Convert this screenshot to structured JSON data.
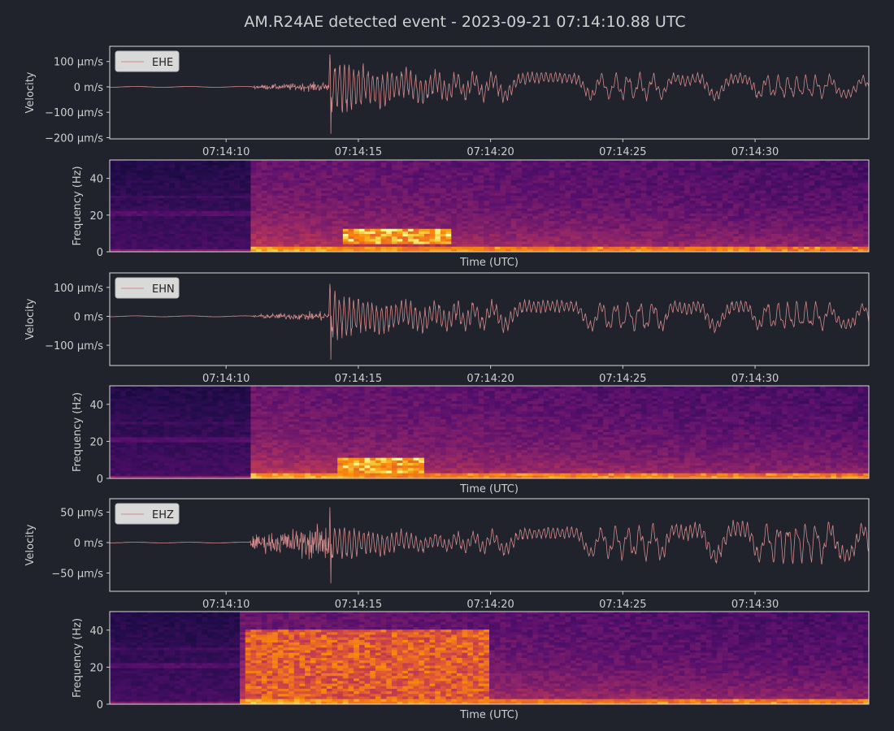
{
  "chart_data": {
    "title": "AM.R24AE detected event - 2023-09-21 07:14:10.88 UTC",
    "type": "line",
    "time_axis": {
      "label": "Time (UTC)",
      "range_seconds_after_07_14_00": [
        5.6,
        34.3
      ],
      "tick_labels": [
        "07:14:10",
        "07:14:15",
        "07:14:20",
        "07:14:25",
        "07:14:30"
      ]
    },
    "colors": {
      "background": "#20232c",
      "trace": "#d08a8a",
      "frame": "#d8d8d8",
      "text": "#cfcfcf"
    },
    "panels": [
      {
        "kind": "waveform",
        "channel": "EHE",
        "ylabel": "Velocity",
        "ylim_um_s": [
          -205,
          160
        ],
        "y_ticks": [
          {
            "value": 100,
            "label": "100 μm/s"
          },
          {
            "value": 0,
            "label": "0 m/s"
          },
          {
            "value": -100,
            "label": "−100 μm/s"
          },
          {
            "value": -200,
            "label": "−200 μm/s"
          }
        ],
        "p_arrival": 11.0,
        "s_arrival": 13.9,
        "amplitudes": {
          "noise": 1.5,
          "p_phase": 25,
          "s_peak": 130,
          "coda_start": 70,
          "late": 35,
          "min_spike": -185,
          "max_spike": 128
        }
      },
      {
        "kind": "spectrogram",
        "channel": "EHE",
        "ylabel": "Frequency (Hz)",
        "xlabel": "Time (UTC)",
        "ylim_hz": [
          0,
          50
        ],
        "y_ticks": [
          {
            "value": 0,
            "label": "0"
          },
          {
            "value": 20,
            "label": "20"
          },
          {
            "value": 40,
            "label": "40"
          }
        ],
        "onset": 10.9,
        "hotspots": [
          {
            "t0": 14.5,
            "t1": 18.5,
            "f0": 4,
            "f1": 12,
            "intensity": 0.95
          },
          {
            "t0": 19,
            "t1": 34.3,
            "f0": 0,
            "f1": 3,
            "intensity": 0.85
          }
        ]
      },
      {
        "kind": "waveform",
        "channel": "EHN",
        "ylabel": "Velocity",
        "ylim_um_s": [
          -170,
          150
        ],
        "y_ticks": [
          {
            "value": 100,
            "label": "100 μm/s"
          },
          {
            "value": 0,
            "label": "0 m/s"
          },
          {
            "value": -100,
            "label": "−100 μm/s"
          }
        ],
        "p_arrival": 11.0,
        "s_arrival": 13.9,
        "amplitudes": {
          "noise": 1.5,
          "p_phase": 22,
          "s_peak": 100,
          "coda_start": 60,
          "late": 40,
          "min_spike": -150,
          "max_spike": 112
        }
      },
      {
        "kind": "spectrogram",
        "channel": "EHN",
        "ylabel": "Frequency (Hz)",
        "xlabel": "Time (UTC)",
        "ylim_hz": [
          0,
          50
        ],
        "y_ticks": [
          {
            "value": 0,
            "label": "0"
          },
          {
            "value": 20,
            "label": "20"
          },
          {
            "value": 40,
            "label": "40"
          }
        ],
        "onset": 10.9,
        "hotspots": [
          {
            "t0": 14.3,
            "t1": 17.5,
            "f0": 3,
            "f1": 11,
            "intensity": 0.95
          },
          {
            "t0": 19,
            "t1": 34.3,
            "f0": 0,
            "f1": 3,
            "intensity": 0.85
          }
        ]
      },
      {
        "kind": "waveform",
        "channel": "EHZ",
        "ylabel": "Velocity",
        "ylim_um_s": [
          -80,
          72
        ],
        "y_ticks": [
          {
            "value": 50,
            "label": "50 μm/s"
          },
          {
            "value": 0,
            "label": "0 m/s"
          },
          {
            "value": -50,
            "label": "−50 μm/s"
          }
        ],
        "p_arrival": 10.9,
        "s_arrival": 13.9,
        "amplitudes": {
          "noise": 0.6,
          "p_phase": 40,
          "s_peak": 35,
          "coda_start": 12,
          "late": 35,
          "min_spike": -67,
          "max_spike": 58
        }
      },
      {
        "kind": "spectrogram",
        "channel": "EHZ",
        "ylabel": "Frequency (Hz)",
        "xlabel": "Time (UTC)",
        "ylim_hz": [
          0,
          50
        ],
        "y_ticks": [
          {
            "value": 0,
            "label": "0"
          },
          {
            "value": 20,
            "label": "20"
          },
          {
            "value": 40,
            "label": "40"
          }
        ],
        "onset": 10.6,
        "hotspots": [
          {
            "t0": 10.8,
            "t1": 20,
            "f0": 2,
            "f1": 40,
            "intensity": 0.8
          },
          {
            "t0": 26,
            "t1": 34.3,
            "f0": 0,
            "f1": 3,
            "intensity": 0.85
          }
        ]
      }
    ]
  }
}
